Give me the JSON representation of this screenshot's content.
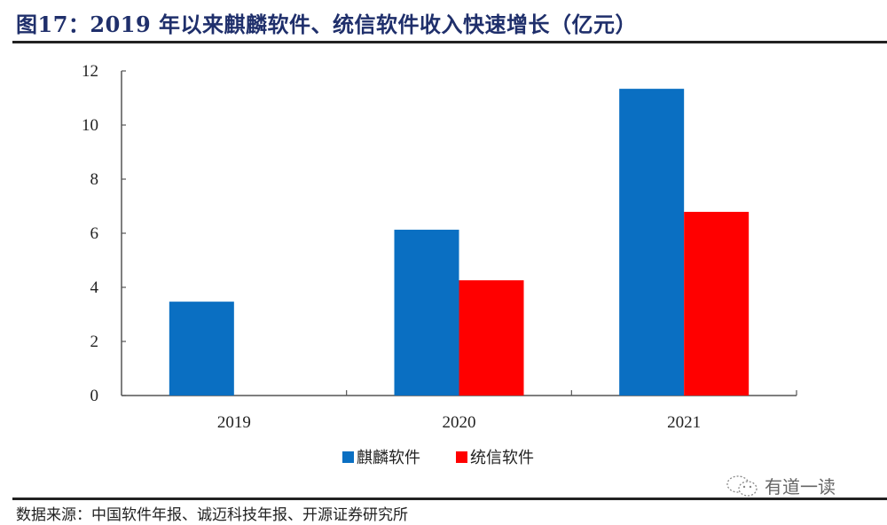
{
  "header": {
    "title": "图17：2019 年以来麒麟软件、统信软件收入快速增长（亿元）"
  },
  "footer": {
    "source": "数据来源：中国软件年报、诚迈科技年报、开源证券研究所",
    "watermark": "有道一读"
  },
  "colors": {
    "series_blue": "#0a6fc2",
    "series_red": "#ff0000",
    "title": "#1f2f6b",
    "axis": "#555555"
  },
  "chart_data": {
    "type": "bar",
    "title": "2019 年以来麒麟软件、统信软件收入快速增长（亿元）",
    "xlabel": "",
    "ylabel": "",
    "categories": [
      "2019",
      "2020",
      "2021"
    ],
    "series": [
      {
        "name": "麒麟软件",
        "color": "#0a6fc2",
        "values": [
          3.47,
          6.13,
          11.34
        ]
      },
      {
        "name": "统信软件",
        "color": "#ff0000",
        "values": [
          null,
          4.26,
          6.79
        ]
      }
    ],
    "ylim": [
      0,
      12
    ],
    "yticks": [
      0,
      2,
      4,
      6,
      8,
      10,
      12
    ],
    "grid": false,
    "legend_position": "bottom"
  }
}
